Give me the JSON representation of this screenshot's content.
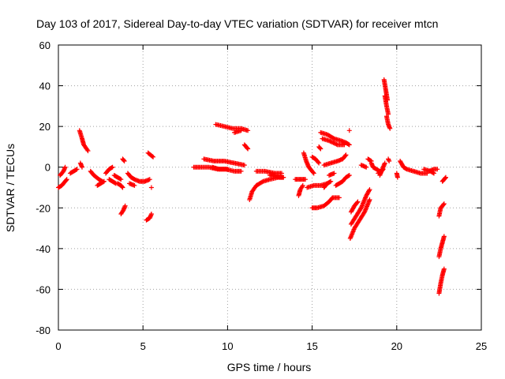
{
  "chart_data": {
    "type": "scatter",
    "title": "Day 103 of 2017, Sidereal Day-to-day VTEC variation (SDTVAR) for receiver mtcn",
    "xlabel": "GPS time / hours",
    "ylabel": "SDTVAR / TECUs",
    "xlim": [
      0,
      25
    ],
    "ylim": [
      -80,
      60
    ],
    "xticks": [
      0,
      5,
      10,
      15,
      20,
      25
    ],
    "yticks": [
      -80,
      -60,
      -40,
      -20,
      0,
      20,
      40,
      60
    ],
    "grid": true,
    "marker": "+",
    "color": "#ff0000",
    "segments": [
      [
        [
          0.0,
          -10
        ],
        [
          0.2,
          -9
        ],
        [
          0.4,
          -7
        ],
        [
          0.5,
          -6
        ]
      ],
      [
        [
          0.1,
          -4
        ],
        [
          0.3,
          -2
        ],
        [
          0.4,
          0
        ]
      ],
      [
        [
          0.7,
          -3
        ],
        [
          0.9,
          -2
        ],
        [
          1.1,
          -1
        ]
      ],
      [
        [
          1.25,
          18
        ],
        [
          1.4,
          14
        ],
        [
          1.5,
          11
        ],
        [
          1.75,
          8
        ]
      ],
      [
        [
          1.3,
          2
        ],
        [
          1.4,
          0
        ]
      ],
      [
        [
          1.9,
          -2
        ],
        [
          2.1,
          -4
        ],
        [
          2.4,
          -6
        ],
        [
          2.6,
          -7
        ]
      ],
      [
        [
          2.3,
          -9
        ],
        [
          2.5,
          -8
        ],
        [
          2.7,
          -7
        ]
      ],
      [
        [
          2.8,
          -3
        ],
        [
          3.0,
          -1
        ],
        [
          3.2,
          0
        ]
      ],
      [
        [
          3.0,
          -6
        ],
        [
          3.2,
          -7
        ],
        [
          3.4,
          -8
        ]
      ],
      [
        [
          3.3,
          -4
        ],
        [
          3.5,
          -5
        ],
        [
          3.7,
          -6
        ]
      ],
      [
        [
          3.5,
          -8
        ],
        [
          3.7,
          -9
        ],
        [
          3.8,
          -10
        ]
      ],
      [
        [
          3.7,
          -23
        ],
        [
          3.85,
          -21
        ],
        [
          3.95,
          -19
        ]
      ],
      [
        [
          3.8,
          4
        ],
        [
          3.9,
          3
        ]
      ],
      [
        [
          4.1,
          -3
        ],
        [
          4.3,
          -5
        ],
        [
          4.5,
          -6
        ],
        [
          4.8,
          -7
        ],
        [
          5.1,
          -7
        ],
        [
          5.4,
          -6
        ]
      ],
      [
        [
          4.2,
          -8
        ],
        [
          4.5,
          -9
        ]
      ],
      [
        [
          5.5,
          -10
        ]
      ],
      [
        [
          5.2,
          -26
        ],
        [
          5.4,
          -25
        ],
        [
          5.5,
          -23
        ]
      ],
      [
        [
          5.3,
          7
        ],
        [
          5.45,
          6
        ],
        [
          5.6,
          5
        ]
      ],
      [
        [
          8.0,
          0
        ],
        [
          8.4,
          0
        ],
        [
          8.9,
          0
        ],
        [
          9.4,
          -1
        ],
        [
          9.9,
          -1
        ],
        [
          10.4,
          -2
        ],
        [
          10.8,
          -2
        ]
      ],
      [
        [
          8.6,
          4
        ],
        [
          9.2,
          3
        ],
        [
          9.8,
          3
        ],
        [
          10.4,
          2
        ],
        [
          11.0,
          1
        ]
      ],
      [
        [
          9.1,
          0
        ],
        [
          9.5,
          -1
        ],
        [
          10.0,
          -1
        ]
      ],
      [
        [
          9.3,
          21
        ],
        [
          9.8,
          20
        ],
        [
          10.3,
          19
        ],
        [
          10.8,
          19
        ],
        [
          11.2,
          18
        ]
      ],
      [
        [
          10.4,
          17
        ],
        [
          10.8,
          18
        ]
      ],
      [
        [
          11.0,
          11
        ],
        [
          11.1,
          10
        ],
        [
          11.2,
          9
        ]
      ],
      [
        [
          11.3,
          -16
        ],
        [
          11.45,
          -12
        ],
        [
          11.7,
          -9
        ],
        [
          12.1,
          -7
        ],
        [
          12.5,
          -6
        ],
        [
          13.0,
          -5
        ],
        [
          13.3,
          -5
        ]
      ],
      [
        [
          11.7,
          -2
        ],
        [
          12.2,
          -2
        ],
        [
          12.8,
          -3
        ],
        [
          13.2,
          -3
        ]
      ],
      [
        [
          12.5,
          -4
        ],
        [
          13.1,
          -5
        ],
        [
          13.3,
          -5
        ]
      ],
      [
        [
          14.0,
          -6
        ],
        [
          14.3,
          -6
        ],
        [
          14.6,
          -6
        ]
      ],
      [
        [
          14.2,
          -14
        ],
        [
          14.3,
          -11
        ],
        [
          14.45,
          -9
        ]
      ],
      [
        [
          14.5,
          7
        ],
        [
          14.65,
          3
        ],
        [
          14.8,
          0
        ],
        [
          15.1,
          -3
        ]
      ],
      [
        [
          14.7,
          -10
        ],
        [
          15.1,
          -9
        ],
        [
          15.5,
          -9
        ],
        [
          15.9,
          -8
        ]
      ],
      [
        [
          15.0,
          5
        ],
        [
          15.2,
          4
        ],
        [
          15.4,
          2
        ]
      ],
      [
        [
          15.4,
          10
        ],
        [
          15.5,
          9
        ]
      ],
      [
        [
          15.7,
          1
        ],
        [
          16.1,
          2
        ],
        [
          16.5,
          3
        ],
        [
          16.8,
          4
        ],
        [
          17.0,
          6
        ]
      ],
      [
        [
          15.5,
          17
        ],
        [
          15.9,
          16
        ],
        [
          16.3,
          14
        ],
        [
          16.7,
          13
        ],
        [
          17.0,
          12
        ],
        [
          17.2,
          11
        ]
      ],
      [
        [
          15.6,
          14
        ],
        [
          16.0,
          13
        ],
        [
          16.5,
          11
        ],
        [
          16.9,
          11
        ]
      ],
      [
        [
          15.7,
          -10
        ],
        [
          15.9,
          -8
        ],
        [
          16.1,
          -7
        ]
      ],
      [
        [
          16.0,
          -4
        ],
        [
          16.3,
          -3
        ]
      ],
      [
        [
          15.0,
          -20
        ],
        [
          15.3,
          -20
        ],
        [
          15.7,
          -19
        ],
        [
          16.0,
          -17
        ],
        [
          16.2,
          -15
        ],
        [
          16.6,
          -15
        ]
      ],
      [
        [
          16.4,
          -9
        ],
        [
          16.6,
          -8
        ],
        [
          16.8,
          -7
        ],
        [
          17.0,
          -5
        ],
        [
          17.2,
          -4
        ]
      ],
      [
        [
          17.2,
          18
        ]
      ],
      [
        [
          17.25,
          -35
        ],
        [
          17.5,
          -30
        ],
        [
          17.8,
          -26
        ],
        [
          18.1,
          -22
        ],
        [
          18.4,
          -16
        ]
      ],
      [
        [
          17.3,
          -28
        ],
        [
          17.6,
          -24
        ],
        [
          17.9,
          -20
        ],
        [
          18.2,
          -14
        ],
        [
          18.4,
          -11
        ]
      ],
      [
        [
          17.3,
          -22
        ],
        [
          17.5,
          -19
        ],
        [
          17.7,
          -17
        ]
      ],
      [
        [
          17.9,
          1
        ],
        [
          18.2,
          0
        ]
      ],
      [
        [
          18.3,
          4
        ],
        [
          18.5,
          3
        ]
      ],
      [
        [
          18.5,
          2
        ],
        [
          18.6,
          0
        ],
        [
          18.8,
          -1
        ],
        [
          19.0,
          -2
        ]
      ],
      [
        [
          18.9,
          -3
        ],
        [
          19.1,
          -2
        ],
        [
          19.2,
          -1
        ]
      ],
      [
        [
          19.0,
          -4
        ],
        [
          19.1,
          -2
        ],
        [
          19.2,
          0
        ],
        [
          19.3,
          2
        ]
      ],
      [
        [
          19.25,
          43
        ],
        [
          19.35,
          38
        ],
        [
          19.45,
          33
        ]
      ],
      [
        [
          19.3,
          35
        ],
        [
          19.4,
          30
        ],
        [
          19.5,
          26
        ]
      ],
      [
        [
          19.4,
          25
        ],
        [
          19.5,
          21
        ],
        [
          19.6,
          19
        ]
      ],
      [
        [
          19.5,
          4
        ],
        [
          19.55,
          3
        ]
      ],
      [
        [
          20.2,
          3
        ],
        [
          20.4,
          0
        ],
        [
          20.6,
          -1
        ],
        [
          21.0,
          -2
        ],
        [
          21.4,
          -3
        ],
        [
          21.8,
          -3
        ]
      ],
      [
        [
          20.0,
          -3
        ],
        [
          20.05,
          -5
        ]
      ],
      [
        [
          21.6,
          -1
        ],
        [
          22.0,
          -2
        ],
        [
          22.2,
          -3
        ]
      ],
      [
        [
          21.9,
          -2
        ],
        [
          22.2,
          -1
        ],
        [
          22.4,
          -1
        ]
      ],
      [
        [
          22.7,
          -7
        ],
        [
          22.8,
          -6
        ],
        [
          22.9,
          -5
        ]
      ],
      [
        [
          22.5,
          -24
        ],
        [
          22.6,
          -20
        ],
        [
          22.8,
          -18
        ]
      ],
      [
        [
          22.5,
          -44
        ],
        [
          22.6,
          -40
        ],
        [
          22.7,
          -37
        ],
        [
          22.8,
          -34
        ]
      ],
      [
        [
          22.5,
          -62
        ],
        [
          22.6,
          -57
        ],
        [
          22.7,
          -53
        ],
        [
          22.8,
          -50
        ]
      ]
    ]
  }
}
